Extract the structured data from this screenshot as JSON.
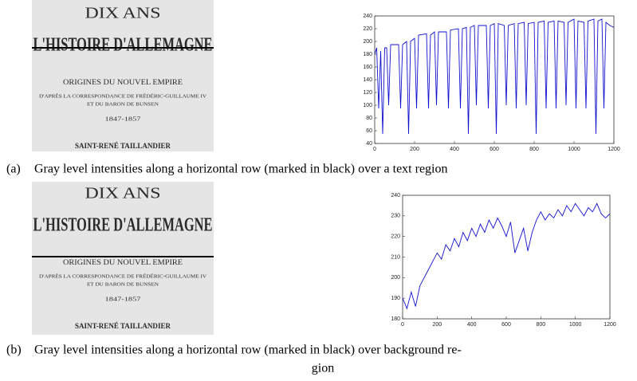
{
  "images": [
    {
      "lines": [
        "DIX ANS",
        "L'HISTOIRE D'ALLEMAGNE",
        "ORIGINES DU NOUVEL EMPIRE",
        "D'APRÈS LA CORRESPONDANCE DE FRÉDÉRIC-GUILLAUME IV",
        "ET DU BARON DE BUNSEN",
        "1847-1857",
        "SAINT-RENÉ TAILLANDIER"
      ]
    },
    {
      "lines": [
        "DIX ANS",
        "L'HISTOIRE D'ALLEMAGNE",
        "ORIGINES DU NOUVEL EMPIRE",
        "D'APRÈS LA CORRESPONDANCE DE FRÉDÉRIC-GUILLAUME IV",
        "ET DU BARON DE BUNSEN",
        "1847-1857",
        "SAINT-RENÉ TAILLANDIER"
      ]
    }
  ],
  "captions": [
    {
      "label": "(a)",
      "lines": [
        "Gray level intensities along a horizontal row (marked in black) over a text region"
      ]
    },
    {
      "label": "(b)",
      "lines": [
        "Gray level intensities along a horizontal row (marked in black) over background re-",
        "gion"
      ]
    }
  ],
  "chart_data": [
    {
      "type": "line",
      "color": "#1010d0",
      "x": [
        0,
        10,
        20,
        30,
        40,
        50,
        60,
        70,
        80,
        120,
        130,
        140,
        160,
        170,
        180,
        200,
        210,
        220,
        260,
        270,
        280,
        300,
        310,
        320,
        360,
        370,
        380,
        420,
        430,
        440,
        460,
        470,
        480,
        500,
        510,
        520,
        560,
        570,
        580,
        600,
        610,
        620,
        650,
        660,
        670,
        700,
        710,
        720,
        750,
        760,
        770,
        800,
        810,
        820,
        850,
        860,
        870,
        900,
        910,
        920,
        950,
        960,
        970,
        1000,
        1010,
        1020,
        1050,
        1060,
        1070,
        1100,
        1110,
        1120,
        1140,
        1150,
        1160,
        1180,
        1200
      ],
      "values": [
        180,
        190,
        95,
        185,
        55,
        190,
        190,
        100,
        195,
        195,
        95,
        195,
        200,
        55,
        200,
        205,
        95,
        210,
        212,
        95,
        210,
        215,
        100,
        215,
        215,
        95,
        218,
        220,
        95,
        220,
        222,
        55,
        222,
        225,
        100,
        225,
        225,
        95,
        225,
        228,
        55,
        228,
        225,
        100,
        225,
        228,
        95,
        228,
        230,
        100,
        228,
        230,
        55,
        230,
        232,
        95,
        230,
        232,
        95,
        232,
        230,
        100,
        230,
        235,
        95,
        232,
        230,
        95,
        232,
        235,
        55,
        232,
        235,
        95,
        230,
        225,
        222
      ],
      "xlim": [
        0,
        1200
      ],
      "ylim": [
        40,
        240
      ],
      "xticks": [
        0,
        200,
        400,
        600,
        800,
        1000,
        1200
      ],
      "yticks": [
        40,
        60,
        80,
        100,
        120,
        140,
        160,
        180,
        200,
        220,
        240
      ]
    },
    {
      "type": "line",
      "color": "#1010d0",
      "x": [
        0,
        25,
        50,
        75,
        100,
        125,
        150,
        175,
        200,
        225,
        250,
        275,
        300,
        325,
        350,
        375,
        400,
        425,
        450,
        475,
        500,
        525,
        550,
        575,
        600,
        625,
        650,
        675,
        700,
        725,
        750,
        775,
        800,
        825,
        850,
        875,
        900,
        925,
        950,
        975,
        1000,
        1025,
        1050,
        1075,
        1100,
        1125,
        1150,
        1175,
        1200
      ],
      "values": [
        190,
        185,
        193,
        186,
        196,
        200,
        204,
        208,
        212,
        209,
        216,
        213,
        219,
        215,
        222,
        218,
        224,
        220,
        226,
        222,
        228,
        224,
        229,
        225,
        220,
        227,
        212,
        218,
        224,
        213,
        222,
        228,
        232,
        228,
        231,
        229,
        233,
        230,
        235,
        232,
        236,
        233,
        230,
        234,
        232,
        236,
        231,
        229,
        231
      ],
      "xlim": [
        0,
        1200
      ],
      "ylim": [
        180,
        240
      ],
      "xticks": [
        0,
        200,
        400,
        600,
        800,
        1000,
        1200
      ],
      "yticks": [
        180,
        190,
        200,
        210,
        220,
        230,
        240
      ]
    }
  ]
}
